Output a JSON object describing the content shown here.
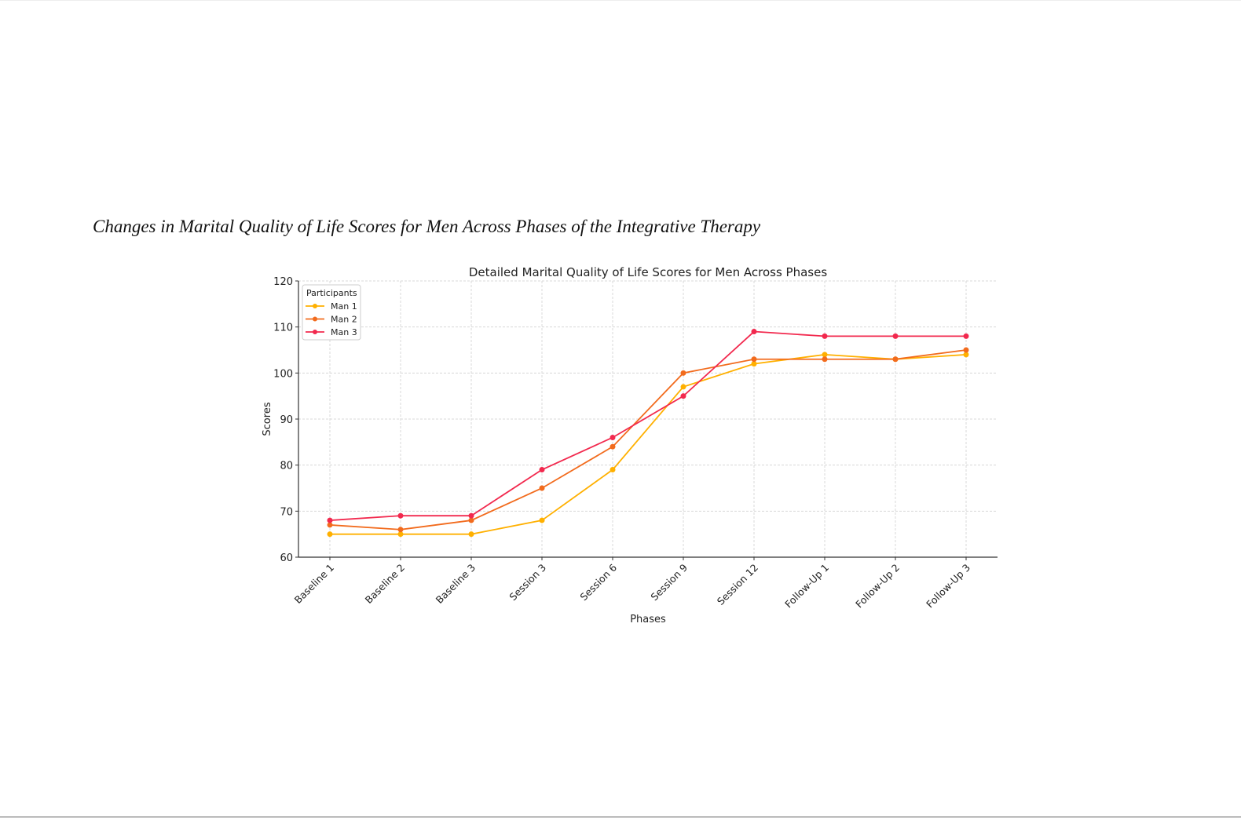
{
  "caption": "Changes in Marital Quality of Life Scores for Men Across Phases of the Integrative Therapy",
  "chart_data": {
    "type": "line",
    "title": "Detailed Marital Quality of Life Scores for Men Across Phases",
    "xlabel": "Phases",
    "ylabel": "Scores",
    "ylim": [
      60,
      120
    ],
    "yticks": [
      60,
      70,
      80,
      90,
      100,
      110,
      120
    ],
    "grid": true,
    "categories": [
      "Baseline 1",
      "Baseline 2",
      "Baseline 3",
      "Session 3",
      "Session 6",
      "Session 9",
      "Session 12",
      "Follow-Up 1",
      "Follow-Up 2",
      "Follow-Up 3"
    ],
    "legend": {
      "title": "Participants",
      "placement": "top-left"
    },
    "series": [
      {
        "name": "Man 1",
        "color": "#FFB000",
        "values": [
          65,
          65,
          65,
          68,
          79,
          97,
          102,
          104,
          103,
          104
        ]
      },
      {
        "name": "Man 2",
        "color": "#F26B1D",
        "values": [
          67,
          66,
          68,
          75,
          84,
          100,
          103,
          103,
          103,
          105
        ]
      },
      {
        "name": "Man 3",
        "color": "#F2294E",
        "values": [
          68,
          69,
          69,
          79,
          86,
          95,
          109,
          108,
          108,
          108
        ]
      }
    ]
  }
}
